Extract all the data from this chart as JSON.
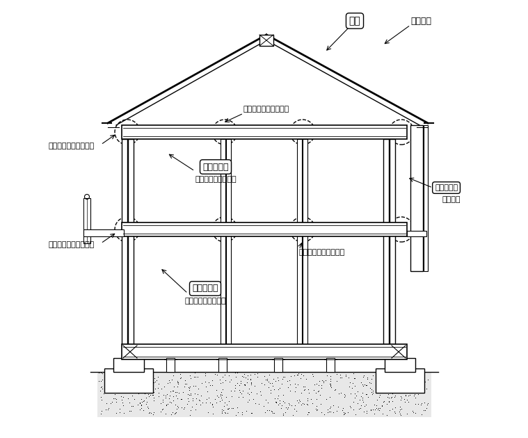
{
  "bg_color": "#ffffff",
  "line_color": "#000000",
  "labels": {
    "yane": "屋根",
    "funen": "不燃材料",
    "fire_stop_top": "ファイヤーストップ材",
    "fire_stop_left_upper": "ファイヤーストップ材",
    "fire_stop_left_lower": "ファイヤーストップ材",
    "fire_stop_right_lower": "ファイヤーストップ材",
    "ceiling_upper_1": "天井・内壁",
    "ceiling_upper_2": "耗火性能（１５分）",
    "ceiling_lower_1": "天井・内壁",
    "ceiling_lower_2": "耗火性能（１５分）",
    "nokiura": "軒裏・外壁",
    "bouka": "防火構造"
  }
}
